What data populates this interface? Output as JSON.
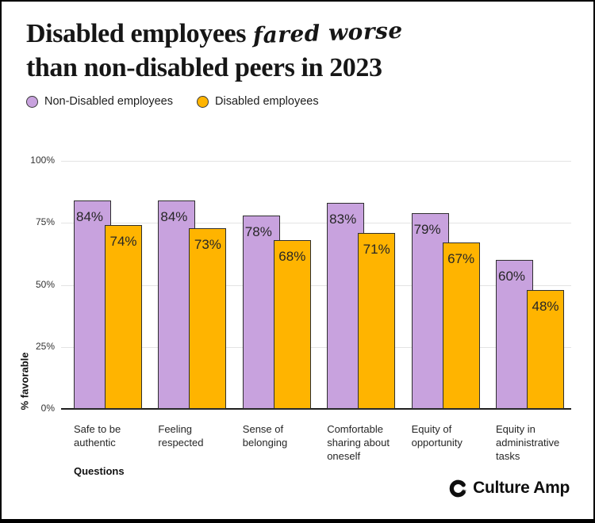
{
  "page": {
    "background": "#ffffff",
    "border_color": "#000000"
  },
  "title": {
    "line1_serif": "Disabled employees",
    "line1_script": "fared worse",
    "line2": "than non-disabled peers in 2023"
  },
  "legend": {
    "items": [
      {
        "label": "Non-Disabled employees",
        "color": "#c8a2de"
      },
      {
        "label": "Disabled employees",
        "color": "#ffb400"
      }
    ]
  },
  "chart_data": {
    "type": "bar",
    "title": "Disabled employees fared worse than non-disabled peers in 2023",
    "categories": [
      "Safe to be authentic",
      "Feeling respected",
      "Sense of belonging",
      "Comfortable sharing about oneself",
      "Equity of opportunity",
      "Equity in administrative tasks"
    ],
    "series": [
      {
        "name": "Non-Disabled employees",
        "color": "#c8a2de",
        "values": [
          84,
          84,
          78,
          83,
          79,
          60
        ],
        "labels": [
          "84%",
          "84%",
          "78%",
          "83%",
          "79%",
          "60%"
        ]
      },
      {
        "name": "Disabled employees",
        "color": "#ffb400",
        "values": [
          74,
          73,
          68,
          71,
          67,
          48
        ],
        "labels": [
          "74%",
          "73%",
          "68%",
          "71%",
          "67%",
          "48%"
        ]
      }
    ],
    "xlabel": "Questions",
    "ylabel": "% favorable",
    "ylim": [
      0,
      100
    ],
    "yticks": [
      0,
      25,
      50,
      75,
      100
    ],
    "ytick_labels": [
      "0%",
      "25%",
      "50%",
      "75%",
      "100%"
    ],
    "grid": true,
    "legend_position": "top",
    "bar_outline_color": "#2f2f2f",
    "gridline_color": "#e3e3e3",
    "baseline_color": "#1f1f1f"
  },
  "footer": {
    "brand": "Culture Amp"
  }
}
